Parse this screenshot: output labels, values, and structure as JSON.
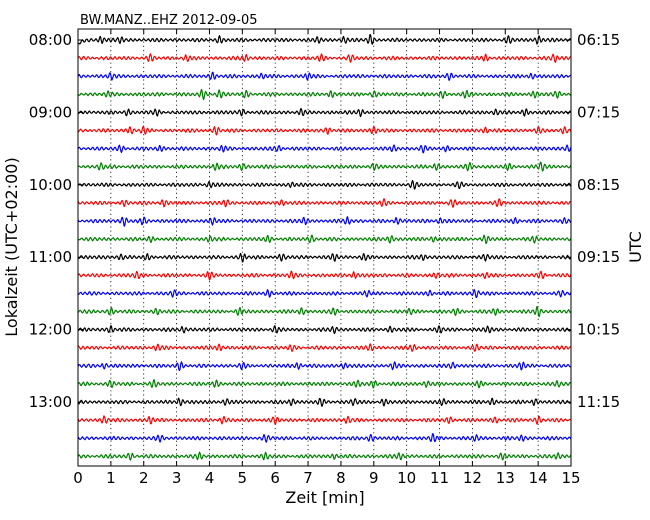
{
  "chart_data": {
    "type": "line",
    "title": "BW.MANZ..EHZ 2012-09-05",
    "xlabel": "Zeit  [min]",
    "ylabel_left": "Lokalzeit (UTC+02:00)",
    "ylabel_right": "UTC",
    "xlim": [
      0,
      15
    ],
    "x_ticks": [
      0,
      1,
      2,
      3,
      4,
      5,
      6,
      7,
      8,
      9,
      10,
      11,
      12,
      13,
      14,
      15
    ],
    "x_grid": "dotted",
    "row_minutes": 15,
    "row_count": 24,
    "left_tick_labels": [
      "08:00",
      "09:00",
      "10:00",
      "11:00",
      "12:00",
      "13:00"
    ],
    "right_tick_labels": [
      "06:15",
      "07:15",
      "08:15",
      "09:15",
      "10:15",
      "11:15"
    ],
    "tick_every_rows": 4,
    "series_colors": [
      "#000000",
      "#ff0000",
      "#0000ff",
      "#008000"
    ],
    "bursts": [
      [
        [
          0.7,
          0.7
        ],
        [
          1.3,
          0.5
        ],
        [
          4.3,
          0.7
        ],
        [
          7.3,
          0.5
        ],
        [
          8.1,
          0.6
        ],
        [
          8.9,
          1.0
        ],
        [
          13.1,
          0.6
        ],
        [
          14.0,
          0.8
        ]
      ],
      [
        [
          2.2,
          0.6
        ],
        [
          3.3,
          0.5
        ],
        [
          5.1,
          0.6
        ],
        [
          7.4,
          0.6
        ],
        [
          8.3,
          0.6
        ],
        [
          12.4,
          0.6
        ],
        [
          14.5,
          0.7
        ]
      ],
      [
        [
          1.0,
          0.6
        ],
        [
          4.1,
          0.7
        ],
        [
          5.6,
          0.5
        ],
        [
          7.0,
          0.6
        ],
        [
          11.3,
          0.6
        ],
        [
          13.8,
          0.5
        ]
      ],
      [
        [
          0.9,
          0.5
        ],
        [
          3.8,
          0.9
        ],
        [
          4.3,
          0.7
        ],
        [
          5.1,
          0.6
        ],
        [
          7.7,
          0.6
        ],
        [
          9.0,
          0.6
        ],
        [
          11.1,
          0.6
        ],
        [
          11.8,
          0.6
        ],
        [
          13.9,
          0.5
        ],
        [
          14.6,
          0.6
        ]
      ],
      [
        [
          1.5,
          0.6
        ],
        [
          2.4,
          0.5
        ],
        [
          5.0,
          0.5
        ],
        [
          6.8,
          0.6
        ],
        [
          8.6,
          0.7
        ],
        [
          12.7,
          0.5
        ],
        [
          13.6,
          0.6
        ]
      ],
      [
        [
          1.6,
          0.6
        ],
        [
          2.0,
          0.6
        ],
        [
          4.2,
          0.7
        ],
        [
          7.6,
          0.6
        ],
        [
          9.0,
          0.7
        ],
        [
          12.4,
          0.6
        ],
        [
          14.0,
          0.5
        ],
        [
          14.8,
          0.6
        ]
      ],
      [
        [
          1.3,
          0.6
        ],
        [
          2.5,
          0.5
        ],
        [
          4.4,
          0.5
        ],
        [
          6.1,
          0.5
        ],
        [
          9.6,
          0.6
        ],
        [
          10.5,
          0.6
        ],
        [
          11.2,
          0.5
        ],
        [
          14.9,
          0.6
        ]
      ],
      [
        [
          0.7,
          0.6
        ],
        [
          4.2,
          0.6
        ],
        [
          5.0,
          0.6
        ],
        [
          9.0,
          0.5
        ],
        [
          10.9,
          0.6
        ],
        [
          11.9,
          0.7
        ],
        [
          13.1,
          0.5
        ],
        [
          14.1,
          0.9
        ]
      ],
      [
        [
          4.0,
          0.5
        ],
        [
          6.5,
          0.4
        ],
        [
          10.2,
          0.7
        ],
        [
          11.6,
          0.5
        ]
      ],
      [
        [
          1.4,
          0.5
        ],
        [
          2.6,
          0.6
        ],
        [
          4.5,
          0.6
        ],
        [
          6.2,
          0.5
        ],
        [
          9.3,
          0.6
        ],
        [
          11.4,
          0.6
        ],
        [
          12.8,
          0.6
        ]
      ],
      [
        [
          1.4,
          0.9
        ],
        [
          2.0,
          0.6
        ],
        [
          4.1,
          0.6
        ],
        [
          6.9,
          0.6
        ],
        [
          8.2,
          0.7
        ],
        [
          9.7,
          0.6
        ],
        [
          11.0,
          0.5
        ],
        [
          13.3,
          0.5
        ],
        [
          14.8,
          0.5
        ]
      ],
      [
        [
          2.2,
          0.5
        ],
        [
          4.0,
          0.5
        ],
        [
          5.8,
          0.6
        ],
        [
          7.1,
          0.7
        ],
        [
          9.5,
          0.7
        ],
        [
          10.8,
          0.5
        ],
        [
          12.4,
          0.7
        ],
        [
          13.9,
          0.5
        ]
      ],
      [
        [
          1.3,
          0.5
        ],
        [
          2.1,
          0.5
        ],
        [
          5.0,
          0.8
        ],
        [
          6.2,
          0.6
        ],
        [
          7.8,
          0.7
        ],
        [
          8.7,
          0.6
        ],
        [
          10.5,
          0.5
        ],
        [
          12.4,
          0.5
        ]
      ],
      [
        [
          1.8,
          0.6
        ],
        [
          4.0,
          0.7
        ],
        [
          6.5,
          0.6
        ],
        [
          8.4,
          0.6
        ],
        [
          10.9,
          0.5
        ],
        [
          12.4,
          0.5
        ],
        [
          14.1,
          0.6
        ]
      ],
      [
        [
          2.9,
          0.6
        ],
        [
          5.8,
          0.6
        ],
        [
          8.8,
          0.5
        ],
        [
          10.7,
          0.5
        ],
        [
          12.1,
          0.8
        ],
        [
          14.7,
          0.5
        ]
      ],
      [
        [
          1.0,
          0.6
        ],
        [
          2.4,
          0.5
        ],
        [
          4.9,
          0.6
        ],
        [
          6.8,
          0.6
        ],
        [
          7.8,
          0.6
        ],
        [
          10.1,
          0.5
        ],
        [
          11.5,
          0.6
        ],
        [
          12.7,
          0.6
        ],
        [
          14.0,
          1.1
        ]
      ],
      [
        [
          1.0,
          0.7
        ],
        [
          3.2,
          0.6
        ],
        [
          6.0,
          0.6
        ],
        [
          7.8,
          0.6
        ],
        [
          9.5,
          0.5
        ],
        [
          11.0,
          0.6
        ],
        [
          12.5,
          0.6
        ]
      ],
      [
        [
          2.4,
          0.5
        ],
        [
          4.3,
          0.6
        ],
        [
          6.5,
          0.5
        ],
        [
          8.9,
          0.6
        ],
        [
          10.2,
          0.6
        ],
        [
          12.1,
          0.6
        ]
      ],
      [
        [
          0.8,
          0.5
        ],
        [
          3.1,
          0.8
        ],
        [
          5.0,
          0.5
        ],
        [
          6.7,
          0.6
        ],
        [
          8.1,
          0.6
        ],
        [
          9.6,
          0.6
        ],
        [
          11.4,
          0.6
        ],
        [
          13.5,
          0.7
        ]
      ],
      [
        [
          1.0,
          0.6
        ],
        [
          2.3,
          0.6
        ],
        [
          4.2,
          0.6
        ],
        [
          8.5,
          0.6
        ],
        [
          9.0,
          0.6
        ],
        [
          10.6,
          0.6
        ],
        [
          12.2,
          0.5
        ],
        [
          14.6,
          0.5
        ]
      ],
      [
        [
          3.1,
          0.8
        ],
        [
          4.5,
          0.6
        ],
        [
          6.5,
          0.6
        ],
        [
          7.4,
          0.6
        ],
        [
          8.4,
          0.6
        ],
        [
          9.3,
          0.6
        ],
        [
          11.1,
          0.6
        ],
        [
          12.6,
          0.6
        ],
        [
          13.9,
          0.6
        ]
      ],
      [
        [
          0.8,
          0.7
        ],
        [
          2.2,
          0.7
        ],
        [
          4.4,
          0.6
        ],
        [
          6.0,
          0.6
        ],
        [
          8.2,
          0.6
        ],
        [
          11.3,
          0.5
        ],
        [
          12.7,
          0.5
        ],
        [
          14.0,
          0.7
        ]
      ],
      [
        [
          2.5,
          0.5
        ],
        [
          5.7,
          0.6
        ],
        [
          8.9,
          0.6
        ],
        [
          10.8,
          0.8
        ],
        [
          12.1,
          0.5
        ],
        [
          13.5,
          0.5
        ]
      ],
      [
        [
          1.6,
          0.6
        ],
        [
          3.7,
          0.6
        ],
        [
          5.7,
          0.6
        ],
        [
          7.8,
          0.5
        ],
        [
          9.8,
          0.6
        ],
        [
          12.9,
          0.5
        ],
        [
          14.6,
          0.5
        ]
      ]
    ]
  }
}
